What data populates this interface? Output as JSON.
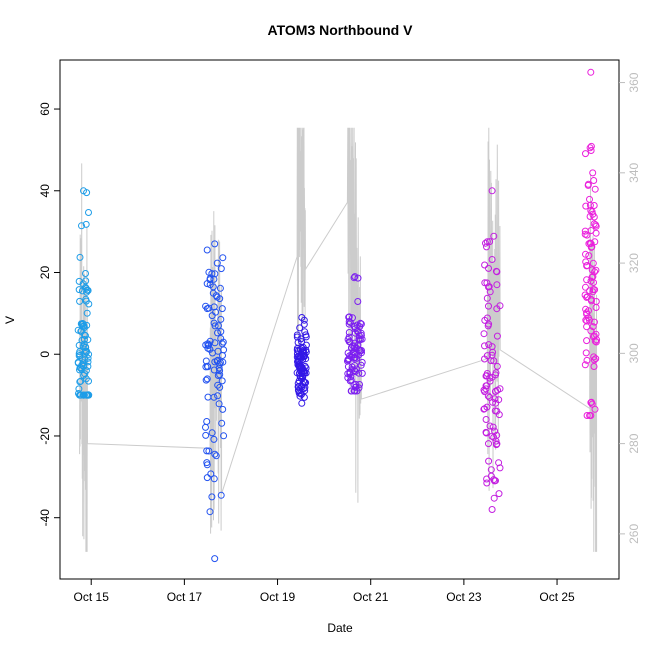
{
  "chart_data": {
    "type": "scatter",
    "title": "ATOM3 Northbound V",
    "xlabel": "Date",
    "ylabel": "V",
    "xlim": [
      "Oct 14 2018",
      "Oct 26 2018"
    ],
    "xticks": [
      "Oct 15",
      "Oct 17",
      "Oct 19",
      "Oct 21",
      "Oct 23",
      "Oct 25"
    ],
    "ylim": [
      -55,
      72
    ],
    "yticks": [
      "-40",
      "-20",
      "0",
      "20",
      "40",
      "60"
    ],
    "y2lim": [
      250,
      365
    ],
    "y2ticks": [
      "260",
      "280",
      "300",
      "320",
      "340",
      "360"
    ],
    "grid": false,
    "legend": "none",
    "colors": {
      "bursts": [
        "#1e9de8",
        "#2353f0",
        "#3318e6",
        "#7c1ff0",
        "#c31fe0",
        "#ea1fdc"
      ],
      "secondary_line": "#cccccc",
      "axis": "#000000",
      "secondary_axis": "#bdbdbd"
    },
    "bursts": [
      {
        "t_range": [
          14.72,
          14.95
        ],
        "v_range": [
          -10,
          40
        ],
        "v_center": 2
      },
      {
        "t_range": [
          17.45,
          17.85
        ],
        "v_range": [
          -50,
          27
        ],
        "v_center": -2
      },
      {
        "t_range": [
          19.42,
          19.62
        ],
        "v_range": [
          -12,
          9
        ],
        "v_center": -2
      },
      {
        "t_range": [
          20.5,
          20.82
        ],
        "v_range": [
          -9,
          19
        ],
        "v_center": 0
      },
      {
        "t_range": [
          23.43,
          23.78
        ],
        "v_range": [
          -38,
          40
        ],
        "v_center": -2
      },
      {
        "t_range": [
          25.6,
          25.85
        ],
        "v_range": [
          -15,
          69
        ],
        "v_center": 15
      }
    ],
    "secondary_series": [
      {
        "t": 14.75,
        "v": 300
      },
      {
        "t": 14.92,
        "v": 281
      },
      {
        "t": 17.55,
        "v": 292
      },
      {
        "t": 17.8,
        "v": 298
      },
      {
        "t": 19.42,
        "v": 343
      },
      {
        "t": 19.6,
        "v": 330
      },
      {
        "t": 20.5,
        "v": 342
      },
      {
        "t": 20.8,
        "v": 290
      },
      {
        "t": 23.5,
        "v": 303
      },
      {
        "t": 23.78,
        "v": 315
      },
      {
        "t": 25.7,
        "v": 303
      },
      {
        "t": 25.85,
        "v": 282
      }
    ]
  }
}
